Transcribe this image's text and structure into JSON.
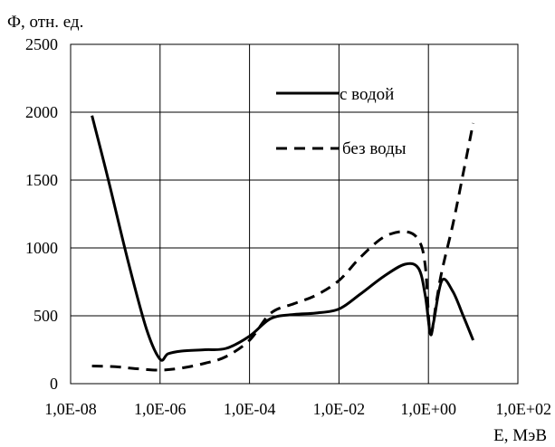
{
  "chart_data": {
    "type": "line",
    "ylabel": "Ф, отн. ед.",
    "xlabel": "Е, МэВ",
    "x_scale": "log",
    "xlim": [
      1e-08,
      100
    ],
    "ylim": [
      0,
      2500
    ],
    "x_ticks": [
      1e-08,
      1e-06,
      0.0001,
      0.01,
      1,
      100
    ],
    "x_tick_labels": [
      "1,0E-08",
      "1,0E-06",
      "1,0E-04",
      "1,0E-02",
      "1,0E+00",
      "1,0E+02"
    ],
    "y_ticks": [
      0,
      500,
      1000,
      1500,
      2000,
      2500
    ],
    "y_tick_labels": [
      "0",
      "500",
      "1000",
      "1500",
      "2000",
      "2500"
    ],
    "grid": true,
    "legend_position": "top-right",
    "series": [
      {
        "name": "с водой",
        "style": "solid",
        "color": "#000000",
        "x": [
          3e-08,
          7e-08,
          2e-07,
          5e-07,
          1e-06,
          1.5e-06,
          3e-06,
          1e-05,
          3e-05,
          0.0001,
          0.0003,
          0.001,
          0.003,
          0.01,
          0.03,
          0.1,
          0.3,
          0.6,
          0.85,
          1.1,
          1.3,
          2,
          3.5,
          6,
          10
        ],
        "values": [
          1975,
          1500,
          880,
          400,
          180,
          220,
          240,
          250,
          260,
          350,
          480,
          510,
          520,
          550,
          660,
          790,
          880,
          850,
          650,
          370,
          450,
          760,
          680,
          500,
          320
        ]
      },
      {
        "name": "без воды",
        "style": "dashed",
        "color": "#000000",
        "x": [
          3e-08,
          1e-07,
          3e-07,
          1e-06,
          3e-06,
          1e-05,
          3e-05,
          0.0001,
          0.0003,
          0.001,
          0.003,
          0.01,
          0.03,
          0.1,
          0.3,
          0.6,
          0.85,
          1.1,
          1.5,
          2,
          3.5,
          6,
          10
        ],
        "values": [
          130,
          125,
          110,
          100,
          115,
          150,
          200,
          320,
          520,
          590,
          650,
          760,
          930,
          1080,
          1120,
          1060,
          870,
          370,
          600,
          830,
          1170,
          1550,
          1920
        ]
      }
    ]
  }
}
